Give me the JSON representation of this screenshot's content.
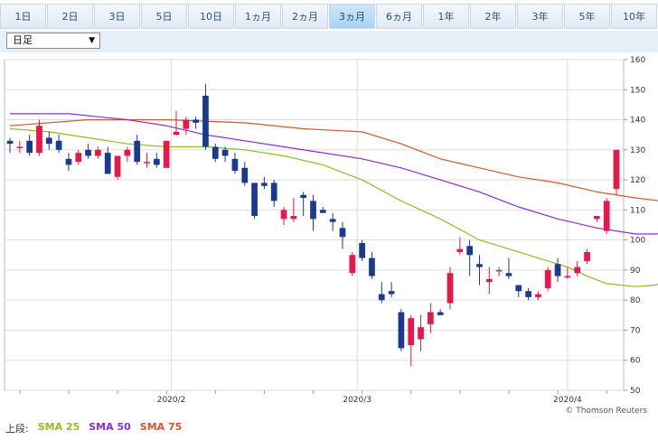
{
  "tabs": [
    {
      "label": "1日",
      "active": false
    },
    {
      "label": "2日",
      "active": false
    },
    {
      "label": "3日",
      "active": false
    },
    {
      "label": "5日",
      "active": false
    },
    {
      "label": "10日",
      "active": false
    },
    {
      "label": "1ヵ月",
      "active": false
    },
    {
      "label": "2ヵ月",
      "active": false
    },
    {
      "label": "3ヵ月",
      "active": true
    },
    {
      "label": "6ヵ月",
      "active": false
    },
    {
      "label": "1年",
      "active": false
    },
    {
      "label": "2年",
      "active": false
    },
    {
      "label": "3年",
      "active": false
    },
    {
      "label": "5年",
      "active": false
    },
    {
      "label": "10年",
      "active": false
    }
  ],
  "period_select": {
    "value": "日足"
  },
  "legend": {
    "prefix": "上段:",
    "sma25": "SMA 25",
    "sma50": "SMA 50",
    "sma75": "SMA 75"
  },
  "credit": "© Thomson Reuters",
  "colors": {
    "up": "#e8174a",
    "down": "#1a3a8f",
    "sma25": "#8fbe1f",
    "sma50": "#8a2be2",
    "sma75": "#e0522a",
    "grid": "#dddddd"
  },
  "chart_data": {
    "type": "candlestick",
    "ylim": [
      50,
      160
    ],
    "yticks": [
      50,
      60,
      70,
      80,
      90,
      100,
      110,
      120,
      130,
      140,
      150,
      160
    ],
    "xlabels": [
      {
        "label": "2020/2",
        "index": 16.5
      },
      {
        "label": "2020/3",
        "index": 35.5
      },
      {
        "label": "2020/4",
        "index": 57
      }
    ],
    "candles": [
      [
        133,
        134,
        129,
        132
      ],
      [
        131,
        133,
        129,
        131
      ],
      [
        133,
        135,
        128,
        129
      ],
      [
        129,
        140,
        128,
        138
      ],
      [
        134,
        136,
        130,
        132
      ],
      [
        133,
        135,
        129,
        130
      ],
      [
        127,
        129,
        123,
        125
      ],
      [
        126,
        130,
        125,
        129
      ],
      [
        130,
        132,
        127,
        128
      ],
      [
        128,
        131,
        127,
        130
      ],
      [
        129,
        131,
        123,
        122
      ],
      [
        121,
        127,
        120,
        128
      ],
      [
        128,
        131,
        126,
        130
      ],
      [
        133,
        135,
        125,
        126
      ],
      [
        126,
        129,
        124,
        126
      ],
      [
        127,
        129,
        124,
        125
      ],
      [
        124,
        133,
        124,
        133
      ],
      [
        135,
        143,
        135,
        136
      ],
      [
        137,
        141,
        135,
        140
      ],
      [
        140,
        141,
        137,
        139
      ],
      [
        148,
        152,
        130,
        131
      ],
      [
        131,
        132,
        126,
        127
      ],
      [
        130,
        131,
        126,
        128
      ],
      [
        127,
        129,
        122,
        123
      ],
      [
        124,
        126,
        118,
        119
      ],
      [
        119,
        119,
        107,
        108
      ],
      [
        119,
        121,
        117,
        118
      ],
      [
        119,
        120,
        111,
        113
      ],
      [
        107,
        111,
        105,
        110
      ],
      [
        107,
        114,
        106,
        108
      ],
      [
        115,
        116,
        108,
        114
      ],
      [
        113,
        115,
        103,
        107
      ],
      [
        110,
        111,
        109,
        109
      ],
      [
        107,
        109,
        103,
        106
      ],
      [
        104,
        106,
        97,
        101
      ],
      [
        89,
        96,
        88,
        95
      ],
      [
        99,
        100,
        93,
        94
      ],
      [
        94,
        96,
        87,
        88
      ],
      [
        82,
        86,
        79,
        80
      ],
      [
        83,
        86,
        81,
        82
      ],
      [
        76,
        77,
        63,
        64
      ],
      [
        65,
        75,
        58,
        74
      ],
      [
        67,
        75,
        63,
        71
      ],
      [
        72,
        79,
        69,
        76
      ],
      [
        76,
        77,
        75,
        75
      ],
      [
        79,
        91,
        77,
        89
      ],
      [
        96,
        101,
        95,
        97
      ],
      [
        98,
        100,
        88,
        95
      ],
      [
        92,
        95,
        85,
        91
      ],
      [
        86,
        91,
        82,
        87
      ],
      [
        90,
        91,
        88,
        90
      ],
      [
        89,
        94,
        87,
        88
      ],
      [
        85,
        85,
        81,
        83
      ],
      [
        83,
        84,
        80,
        81
      ],
      [
        81,
        83,
        80,
        82
      ],
      [
        84,
        91,
        83,
        90
      ],
      [
        92,
        94,
        86,
        88
      ],
      [
        88,
        91,
        87,
        88
      ],
      [
        89,
        93,
        88,
        91
      ],
      [
        93,
        97,
        92,
        96
      ],
      [
        107,
        108,
        106,
        108
      ],
      [
        103,
        114,
        102,
        113
      ],
      [
        117,
        130,
        115,
        130
      ]
    ],
    "sma25": [
      [
        0,
        137
      ],
      [
        4,
        136
      ],
      [
        8,
        134
      ],
      [
        12,
        132
      ],
      [
        16,
        131
      ],
      [
        20,
        131
      ],
      [
        24,
        130
      ],
      [
        28,
        128
      ],
      [
        32,
        125
      ],
      [
        36,
        120
      ],
      [
        40,
        113
      ],
      [
        44,
        107
      ],
      [
        48,
        100
      ],
      [
        51,
        97
      ],
      [
        54,
        94
      ],
      [
        57,
        91
      ],
      [
        59,
        88
      ],
      [
        61,
        85.5
      ],
      [
        64,
        84.5
      ],
      [
        66,
        85
      ],
      [
        69,
        88
      ]
    ],
    "sma50": [
      [
        0,
        142
      ],
      [
        6,
        142
      ],
      [
        12,
        140
      ],
      [
        16,
        138
      ],
      [
        20,
        135
      ],
      [
        24,
        133
      ],
      [
        28,
        131
      ],
      [
        32,
        129
      ],
      [
        36,
        127
      ],
      [
        40,
        124
      ],
      [
        44,
        120
      ],
      [
        48,
        116
      ],
      [
        52,
        111
      ],
      [
        56,
        107
      ],
      [
        60,
        104
      ],
      [
        64,
        102
      ],
      [
        66,
        102
      ],
      [
        69,
        103
      ]
    ],
    "sma75": [
      [
        0,
        138
      ],
      [
        8,
        140
      ],
      [
        16,
        140
      ],
      [
        24,
        139
      ],
      [
        30,
        137
      ],
      [
        36,
        136
      ],
      [
        40,
        132
      ],
      [
        44,
        127
      ],
      [
        48,
        124
      ],
      [
        52,
        121
      ],
      [
        56,
        119
      ],
      [
        60,
        116
      ],
      [
        64,
        114
      ],
      [
        69,
        112
      ]
    ]
  }
}
